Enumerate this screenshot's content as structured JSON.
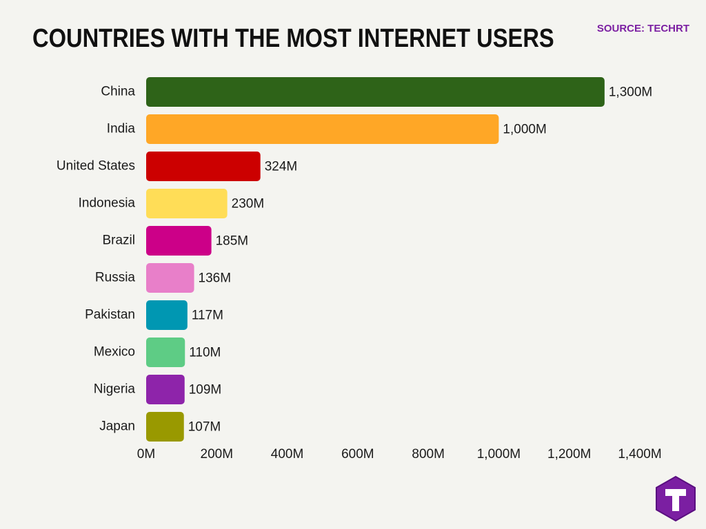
{
  "chart_data": {
    "type": "bar",
    "orientation": "horizontal",
    "title": "COUNTRIES WITH THE MOST INTERNET USERS",
    "source": "SOURCE: TECHRT",
    "categories": [
      "China",
      "India",
      "United States",
      "Indonesia",
      "Brazil",
      "Russia",
      "Pakistan",
      "Mexico",
      "Nigeria",
      "Japan"
    ],
    "values": [
      1300,
      1000,
      324,
      230,
      185,
      136,
      117,
      110,
      109,
      107
    ],
    "value_labels": [
      "1,300M",
      "1,000M",
      "324M",
      "230M",
      "185M",
      "136M",
      "117M",
      "110M",
      "109M",
      "107M"
    ],
    "colors": [
      "#2e6318",
      "#ffa726",
      "#cc0000",
      "#ffdd57",
      "#cc0088",
      "#e87fc9",
      "#0097b2",
      "#5ecc85",
      "#8e24aa",
      "#999900"
    ],
    "xlim": [
      0,
      1400
    ],
    "xticks": [
      {
        "value": 0,
        "label": "0M"
      },
      {
        "value": 200,
        "label": "200M"
      },
      {
        "value": 400,
        "label": "400M"
      },
      {
        "value": 600,
        "label": "600M"
      },
      {
        "value": 800,
        "label": "800M"
      },
      {
        "value": 1000,
        "label": "1,000M"
      },
      {
        "value": 1200,
        "label": "1,200M"
      },
      {
        "value": 1400,
        "label": "1,400M"
      }
    ],
    "grid": false
  }
}
